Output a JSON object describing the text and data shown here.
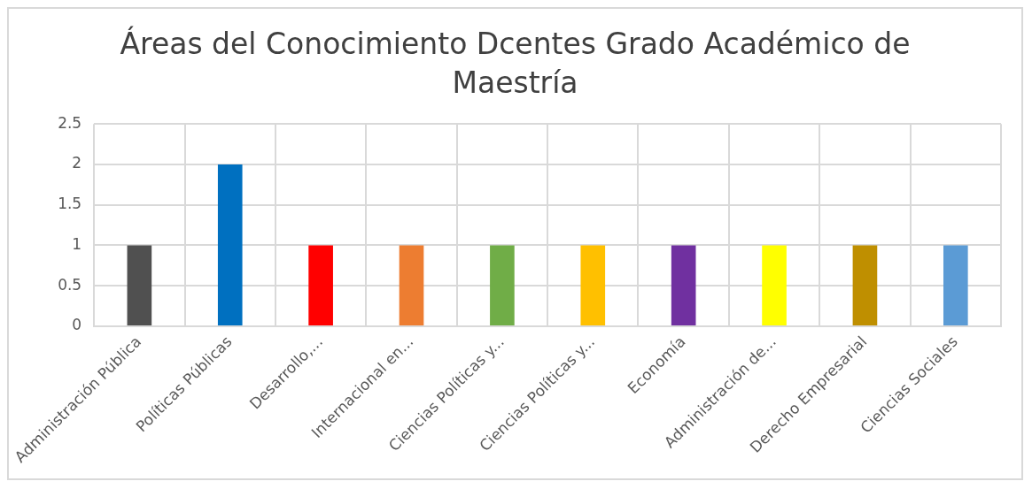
{
  "chart_data": {
    "type": "bar",
    "title": "Áreas del Conocimiento Dcentes Grado Académico de Maestría",
    "categories": [
      "Administración Pública",
      "Políticas Públicas",
      "Desarrollo,...",
      "Internacional en...",
      "Ciencias Políticas y...",
      "Ciencias Políticas y...",
      "Economía",
      "Administración de...",
      "Derecho Empresarial",
      "Ciencias Sociales"
    ],
    "values": [
      1,
      2,
      1,
      1,
      1,
      1,
      1,
      1,
      1,
      1
    ],
    "colors": [
      "#505050",
      "#0070c0",
      "#ff0000",
      "#ed7d31",
      "#70ad47",
      "#ffc000",
      "#7030a0",
      "#ffff00",
      "#bf8f00",
      "#5b9bd5"
    ],
    "ylim": [
      0,
      2.5
    ],
    "yticks": [
      0,
      0.5,
      1,
      1.5,
      2,
      2.5
    ],
    "grid": true,
    "legend": false
  }
}
